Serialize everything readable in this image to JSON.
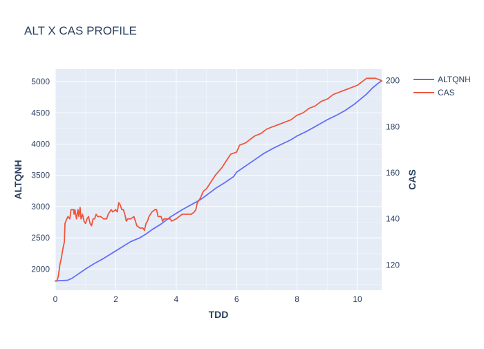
{
  "chart_data": {
    "type": "line",
    "title": "ALT X CAS PROFILE",
    "xlabel": "TDD",
    "ylabel": "ALTQNH",
    "y2label": "CAS",
    "xlim": [
      0,
      10.8
    ],
    "ylim": [
      1660,
      5200
    ],
    "y2lim": [
      109,
      205
    ],
    "x_ticks": [
      0,
      2,
      4,
      6,
      8,
      10
    ],
    "y_ticks": [
      2000,
      2500,
      3000,
      3500,
      4000,
      4500,
      5000
    ],
    "y2_ticks": [
      120,
      140,
      160,
      180,
      200
    ],
    "grid": true,
    "legend_position": "top-right",
    "series": [
      {
        "name": "ALTQNH",
        "axis": "y",
        "color": "#636efa",
        "points": [
          [
            0,
            1810
          ],
          [
            0.2,
            1815
          ],
          [
            0.4,
            1820
          ],
          [
            0.55,
            1850
          ],
          [
            0.7,
            1900
          ],
          [
            1.0,
            2000
          ],
          [
            1.3,
            2090
          ],
          [
            1.6,
            2170
          ],
          [
            2.0,
            2290
          ],
          [
            2.3,
            2380
          ],
          [
            2.5,
            2440
          ],
          [
            2.8,
            2500
          ],
          [
            3.0,
            2560
          ],
          [
            3.2,
            2630
          ],
          [
            3.5,
            2720
          ],
          [
            3.8,
            2830
          ],
          [
            4.0,
            2890
          ],
          [
            4.2,
            2950
          ],
          [
            4.5,
            3030
          ],
          [
            4.8,
            3110
          ],
          [
            5.0,
            3180
          ],
          [
            5.3,
            3290
          ],
          [
            5.6,
            3380
          ],
          [
            5.9,
            3480
          ],
          [
            6.0,
            3550
          ],
          [
            6.3,
            3650
          ],
          [
            6.6,
            3750
          ],
          [
            6.9,
            3850
          ],
          [
            7.2,
            3930
          ],
          [
            7.5,
            4000
          ],
          [
            7.8,
            4070
          ],
          [
            8.0,
            4130
          ],
          [
            8.3,
            4200
          ],
          [
            8.6,
            4280
          ],
          [
            9.0,
            4390
          ],
          [
            9.3,
            4460
          ],
          [
            9.6,
            4540
          ],
          [
            9.9,
            4640
          ],
          [
            10.1,
            4720
          ],
          [
            10.3,
            4800
          ],
          [
            10.5,
            4900
          ],
          [
            10.7,
            4980
          ],
          [
            10.8,
            5010
          ]
        ]
      },
      {
        "name": "CAS",
        "axis": "y2",
        "color": "#ef553b",
        "points": [
          [
            0,
            113
          ],
          [
            0.05,
            113
          ],
          [
            0.1,
            115
          ],
          [
            0.15,
            120
          ],
          [
            0.2,
            123
          ],
          [
            0.25,
            127
          ],
          [
            0.3,
            130
          ],
          [
            0.32,
            138
          ],
          [
            0.38,
            140
          ],
          [
            0.42,
            141
          ],
          [
            0.48,
            140
          ],
          [
            0.52,
            144
          ],
          [
            0.6,
            144
          ],
          [
            0.62,
            142
          ],
          [
            0.65,
            144
          ],
          [
            0.7,
            140
          ],
          [
            0.75,
            144
          ],
          [
            0.78,
            141
          ],
          [
            0.82,
            145
          ],
          [
            0.85,
            140
          ],
          [
            0.9,
            142
          ],
          [
            0.95,
            139
          ],
          [
            1.0,
            138
          ],
          [
            1.05,
            140
          ],
          [
            1.1,
            141
          ],
          [
            1.15,
            138
          ],
          [
            1.2,
            137
          ],
          [
            1.25,
            140
          ],
          [
            1.3,
            140
          ],
          [
            1.35,
            142
          ],
          [
            1.4,
            141
          ],
          [
            1.5,
            141
          ],
          [
            1.6,
            140
          ],
          [
            1.7,
            140
          ],
          [
            1.75,
            142
          ],
          [
            1.85,
            144
          ],
          [
            1.9,
            143
          ],
          [
            2.0,
            144
          ],
          [
            2.05,
            143
          ],
          [
            2.1,
            147
          ],
          [
            2.15,
            146
          ],
          [
            2.2,
            144
          ],
          [
            2.25,
            144
          ],
          [
            2.3,
            142
          ],
          [
            2.35,
            139
          ],
          [
            2.4,
            140
          ],
          [
            2.5,
            140
          ],
          [
            2.6,
            141
          ],
          [
            2.7,
            137
          ],
          [
            2.8,
            136
          ],
          [
            2.9,
            136
          ],
          [
            2.95,
            135
          ],
          [
            3.0,
            138
          ],
          [
            3.05,
            139
          ],
          [
            3.1,
            141
          ],
          [
            3.2,
            143
          ],
          [
            3.3,
            144
          ],
          [
            3.35,
            144
          ],
          [
            3.4,
            141
          ],
          [
            3.5,
            141
          ],
          [
            3.55,
            139
          ],
          [
            3.6,
            140
          ],
          [
            3.8,
            140
          ],
          [
            3.85,
            139
          ],
          [
            4.0,
            140
          ],
          [
            4.1,
            141
          ],
          [
            4.2,
            142
          ],
          [
            4.3,
            142
          ],
          [
            4.5,
            142
          ],
          [
            4.6,
            143
          ],
          [
            4.65,
            144
          ],
          [
            4.7,
            147
          ],
          [
            4.8,
            149
          ],
          [
            4.9,
            152
          ],
          [
            5.0,
            153
          ],
          [
            5.1,
            155
          ],
          [
            5.2,
            157
          ],
          [
            5.3,
            159
          ],
          [
            5.5,
            162
          ],
          [
            5.7,
            166
          ],
          [
            5.8,
            168
          ],
          [
            6.0,
            169
          ],
          [
            6.1,
            172
          ],
          [
            6.3,
            173
          ],
          [
            6.5,
            175
          ],
          [
            6.6,
            176
          ],
          [
            6.8,
            177
          ],
          [
            7.0,
            179
          ],
          [
            7.2,
            180
          ],
          [
            7.4,
            181
          ],
          [
            7.6,
            182
          ],
          [
            7.8,
            183
          ],
          [
            8.0,
            185
          ],
          [
            8.2,
            186
          ],
          [
            8.4,
            188
          ],
          [
            8.6,
            189
          ],
          [
            8.8,
            191
          ],
          [
            9.0,
            192
          ],
          [
            9.2,
            194
          ],
          [
            9.4,
            195
          ],
          [
            9.6,
            196
          ],
          [
            9.8,
            197
          ],
          [
            10.0,
            198
          ],
          [
            10.1,
            199
          ],
          [
            10.2,
            200
          ],
          [
            10.3,
            201
          ],
          [
            10.4,
            201
          ],
          [
            10.5,
            201
          ],
          [
            10.6,
            201
          ],
          [
            10.8,
            200
          ]
        ]
      }
    ]
  }
}
